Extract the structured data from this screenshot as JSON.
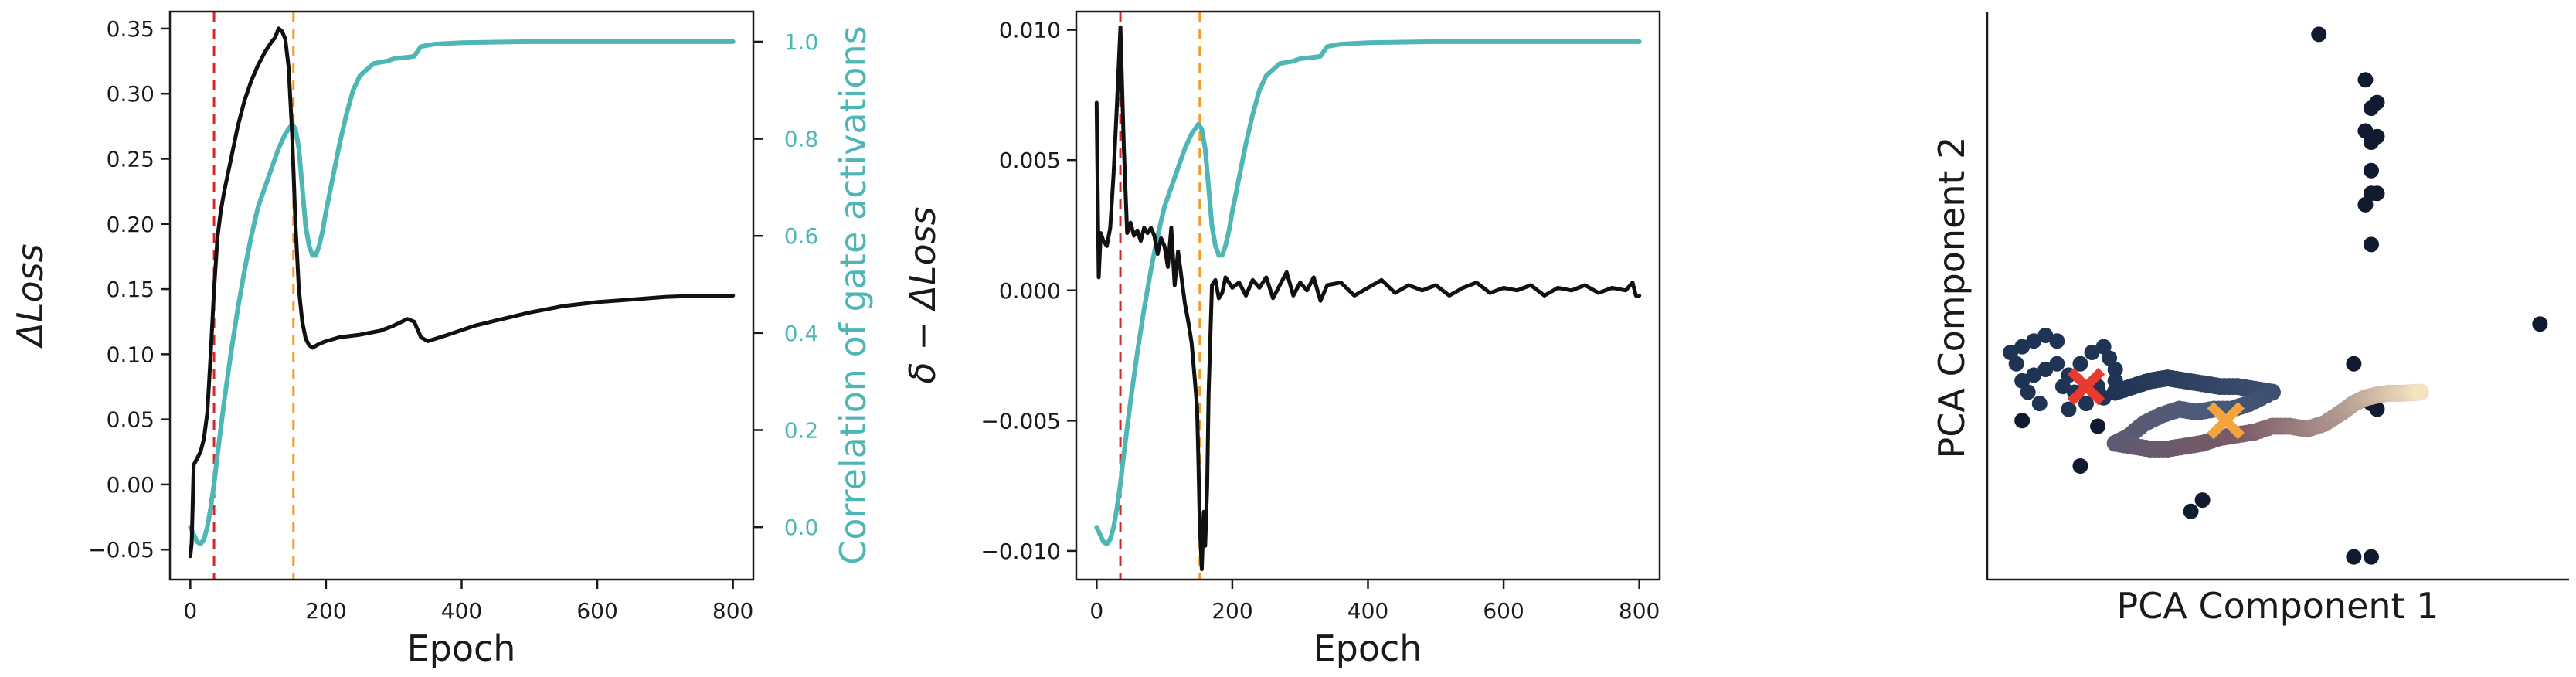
{
  "chart_data": [
    {
      "type": "line",
      "xlabel": "Epoch",
      "ylabel": "ΔLoss",
      "ylabel_right": "Correlation of gate activations",
      "xlim": [
        -30,
        830
      ],
      "ylim": [
        -0.073,
        0.363
      ],
      "ylim_right": [
        -0.108,
        1.062
      ],
      "xticks": [
        {
          "v": 0,
          "label": "0"
        },
        {
          "v": 200,
          "label": "200"
        },
        {
          "v": 400,
          "label": "400"
        },
        {
          "v": 600,
          "label": "600"
        },
        {
          "v": 800,
          "label": "800"
        }
      ],
      "yticks": [
        {
          "v": -0.05,
          "label": "−0.05"
        },
        {
          "v": 0.0,
          "label": "0.00"
        },
        {
          "v": 0.05,
          "label": "0.05"
        },
        {
          "v": 0.1,
          "label": "0.10"
        },
        {
          "v": 0.15,
          "label": "0.15"
        },
        {
          "v": 0.2,
          "label": "0.20"
        },
        {
          "v": 0.25,
          "label": "0.25"
        },
        {
          "v": 0.3,
          "label": "0.30"
        },
        {
          "v": 0.35,
          "label": "0.35"
        }
      ],
      "yticks_right": [
        {
          "v": 0.0,
          "label": "0.0"
        },
        {
          "v": 0.2,
          "label": "0.2"
        },
        {
          "v": 0.4,
          "label": "0.4"
        },
        {
          "v": 0.6,
          "label": "0.6"
        },
        {
          "v": 0.8,
          "label": "0.8"
        },
        {
          "v": 1.0,
          "label": "1.0"
        }
      ],
      "vlines": [
        {
          "x": 35,
          "color": "#d62728"
        },
        {
          "x": 152,
          "color": "#f29b26"
        }
      ],
      "series": [
        {
          "axis": "left",
          "color": "#111111",
          "x": [
            0,
            2,
            5,
            10,
            15,
            20,
            25,
            30,
            35,
            40,
            45,
            50,
            60,
            70,
            80,
            90,
            100,
            110,
            120,
            125,
            130,
            135,
            140,
            145,
            150,
            155,
            160,
            165,
            170,
            175,
            180,
            190,
            200,
            220,
            250,
            280,
            300,
            320,
            330,
            340,
            350,
            380,
            420,
            460,
            500,
            550,
            600,
            650,
            700,
            750,
            800
          ],
          "y": [
            -0.055,
            -0.045,
            0.015,
            0.02,
            0.025,
            0.035,
            0.055,
            0.1,
            0.15,
            0.19,
            0.21,
            0.225,
            0.25,
            0.275,
            0.295,
            0.31,
            0.322,
            0.332,
            0.34,
            0.343,
            0.35,
            0.348,
            0.342,
            0.32,
            0.27,
            0.2,
            0.15,
            0.125,
            0.112,
            0.107,
            0.105,
            0.108,
            0.11,
            0.113,
            0.115,
            0.118,
            0.122,
            0.127,
            0.125,
            0.113,
            0.11,
            0.115,
            0.122,
            0.127,
            0.132,
            0.137,
            0.14,
            0.142,
            0.144,
            0.145,
            0.145
          ]
        },
        {
          "axis": "right",
          "color": "#4fb6b6",
          "x": [
            0,
            5,
            10,
            15,
            20,
            25,
            30,
            35,
            40,
            50,
            60,
            70,
            80,
            90,
            100,
            110,
            120,
            130,
            140,
            150,
            155,
            160,
            165,
            170,
            175,
            180,
            185,
            190,
            195,
            200,
            210,
            220,
            230,
            240,
            250,
            270,
            290,
            300,
            320,
            330,
            340,
            360,
            400,
            500,
            600,
            700,
            800
          ],
          "y": [
            0.0,
            -0.015,
            -0.03,
            -0.035,
            -0.025,
            0.0,
            0.04,
            0.09,
            0.15,
            0.26,
            0.36,
            0.45,
            0.53,
            0.6,
            0.66,
            0.7,
            0.74,
            0.78,
            0.81,
            0.83,
            0.82,
            0.78,
            0.7,
            0.62,
            0.58,
            0.56,
            0.56,
            0.58,
            0.61,
            0.65,
            0.72,
            0.79,
            0.85,
            0.9,
            0.93,
            0.955,
            0.96,
            0.965,
            0.968,
            0.97,
            0.99,
            0.995,
            0.998,
            1.0,
            1.0,
            1.0,
            1.0
          ]
        }
      ]
    },
    {
      "type": "line",
      "xlabel": "Epoch",
      "ylabel": "δ − ΔLoss",
      "xlim": [
        -30,
        830
      ],
      "ylim": [
        -0.0111,
        0.0107
      ],
      "ylim_right": [
        -0.108,
        1.062
      ],
      "xticks": [
        {
          "v": 0,
          "label": "0"
        },
        {
          "v": 200,
          "label": "200"
        },
        {
          "v": 400,
          "label": "400"
        },
        {
          "v": 600,
          "label": "600"
        },
        {
          "v": 800,
          "label": "800"
        }
      ],
      "yticks": [
        {
          "v": -0.01,
          "label": "−0.010"
        },
        {
          "v": -0.005,
          "label": "−0.005"
        },
        {
          "v": 0.0,
          "label": "0.000"
        },
        {
          "v": 0.005,
          "label": "0.005"
        },
        {
          "v": 0.01,
          "label": "0.010"
        }
      ],
      "vlines": [
        {
          "x": 35,
          "color": "#d62728"
        },
        {
          "x": 152,
          "color": "#f29b26"
        }
      ],
      "series": [
        {
          "axis": "left",
          "color": "#111111",
          "x": [
            0,
            3,
            6,
            10,
            15,
            20,
            25,
            30,
            35,
            40,
            45,
            50,
            55,
            60,
            65,
            70,
            75,
            80,
            85,
            90,
            95,
            100,
            105,
            110,
            115,
            120,
            125,
            130,
            135,
            140,
            145,
            148,
            150,
            152,
            155,
            158,
            160,
            163,
            165,
            168,
            170,
            175,
            180,
            185,
            190,
            200,
            210,
            220,
            230,
            240,
            250,
            260,
            270,
            280,
            290,
            300,
            310,
            320,
            330,
            340,
            360,
            380,
            400,
            420,
            440,
            460,
            480,
            500,
            520,
            540,
            560,
            580,
            600,
            620,
            640,
            660,
            680,
            700,
            720,
            740,
            760,
            780,
            790,
            795,
            800
          ],
          "y": [
            0.0072,
            0.0005,
            0.0022,
            0.0019,
            0.0017,
            0.0024,
            0.0045,
            0.0072,
            0.0101,
            0.0055,
            0.0022,
            0.0026,
            0.0021,
            0.0023,
            0.0019,
            0.0024,
            0.0022,
            0.0024,
            0.0021,
            0.0014,
            0.002,
            0.0017,
            0.0009,
            0.0024,
            0.0002,
            0.0015,
            0.0005,
            -0.0005,
            -0.0012,
            -0.002,
            -0.0035,
            -0.0045,
            -0.0065,
            -0.009,
            -0.0107,
            -0.0085,
            -0.0098,
            -0.0075,
            -0.004,
            -0.0015,
            0.0002,
            0.0004,
            -0.0003,
            -0.0001,
            0.0005,
            0.0001,
            0.0003,
            -0.0002,
            0.0004,
            0.0001,
            0.0005,
            -0.0003,
            0.0002,
            0.0007,
            -0.0002,
            0.0003,
            0.0,
            0.0005,
            -0.0004,
            0.0002,
            0.0003,
            -0.0002,
            0.0001,
            0.0004,
            -0.0001,
            0.0002,
            0.0,
            0.0002,
            -0.0002,
            0.0001,
            0.0003,
            -0.0001,
            0.0001,
            0.0,
            0.0002,
            -0.0002,
            0.0001,
            0.0,
            0.0002,
            -0.0001,
            0.0001,
            0.0,
            0.0003,
            -0.0002,
            -0.0002
          ]
        },
        {
          "axis": "right",
          "color": "#4fb6b6",
          "x": [
            0,
            5,
            10,
            15,
            20,
            25,
            30,
            35,
            40,
            50,
            60,
            70,
            80,
            90,
            100,
            110,
            120,
            130,
            140,
            150,
            155,
            160,
            165,
            170,
            175,
            180,
            185,
            190,
            195,
            200,
            210,
            220,
            230,
            240,
            250,
            270,
            290,
            300,
            320,
            330,
            340,
            360,
            400,
            500,
            600,
            700,
            800
          ],
          "y": [
            0.0,
            -0.015,
            -0.03,
            -0.035,
            -0.025,
            0.0,
            0.04,
            0.09,
            0.15,
            0.26,
            0.36,
            0.45,
            0.53,
            0.6,
            0.66,
            0.7,
            0.74,
            0.78,
            0.81,
            0.83,
            0.82,
            0.78,
            0.7,
            0.62,
            0.58,
            0.56,
            0.56,
            0.58,
            0.61,
            0.65,
            0.72,
            0.79,
            0.85,
            0.9,
            0.93,
            0.955,
            0.96,
            0.965,
            0.968,
            0.97,
            0.99,
            0.995,
            0.998,
            1.0,
            1.0,
            1.0,
            1.0
          ]
        }
      ]
    },
    {
      "type": "scatter",
      "xlabel": "PCA Component 1",
      "ylabel": "PCA Component 2",
      "xlim": [
        0,
        100
      ],
      "ylim": [
        0,
        100
      ],
      "grid": false,
      "outlier_points": [
        [
          57,
          96
        ],
        [
          65,
          88
        ],
        [
          66,
          83
        ],
        [
          67,
          84
        ],
        [
          65,
          79
        ],
        [
          66,
          77
        ],
        [
          67,
          78
        ],
        [
          66,
          72
        ],
        [
          66,
          68
        ],
        [
          65,
          66
        ],
        [
          67,
          68
        ],
        [
          66,
          59
        ],
        [
          63,
          38
        ],
        [
          66,
          31
        ],
        [
          67,
          30
        ],
        [
          63,
          4
        ],
        [
          66,
          4
        ],
        [
          95,
          45
        ],
        [
          35,
          12
        ],
        [
          37,
          14
        ],
        [
          16,
          20
        ],
        [
          19,
          27
        ],
        [
          6,
          28
        ]
      ],
      "cluster_points": [
        [
          5,
          38
        ],
        [
          4,
          40
        ],
        [
          6,
          41
        ],
        [
          8,
          42
        ],
        [
          10,
          43
        ],
        [
          12,
          42
        ],
        [
          6,
          35
        ],
        [
          8,
          36
        ],
        [
          10,
          37
        ],
        [
          12,
          38
        ],
        [
          14,
          36
        ],
        [
          16,
          38
        ],
        [
          18,
          40
        ],
        [
          20,
          41
        ],
        [
          21,
          39
        ],
        [
          22,
          37
        ],
        [
          19,
          34
        ],
        [
          20,
          32
        ],
        [
          22,
          35
        ],
        [
          15,
          33
        ],
        [
          17,
          31
        ],
        [
          14,
          30
        ],
        [
          13,
          34
        ],
        [
          7,
          33
        ],
        [
          9,
          31
        ]
      ],
      "trajectory": [
        [
          22,
          33
        ],
        [
          25,
          34
        ],
        [
          28,
          35
        ],
        [
          31,
          35.5
        ],
        [
          34,
          35
        ],
        [
          37,
          34.5
        ],
        [
          40,
          34
        ],
        [
          43,
          34
        ],
        [
          46,
          33.5
        ],
        [
          49,
          33
        ],
        [
          45,
          31
        ],
        [
          42,
          30
        ],
        [
          39,
          30
        ],
        [
          36,
          29.5
        ],
        [
          33,
          30
        ],
        [
          30,
          29
        ],
        [
          27,
          27.5
        ],
        [
          24,
          25
        ],
        [
          22,
          24
        ],
        [
          25,
          23.5
        ],
        [
          28,
          23
        ],
        [
          31,
          23
        ],
        [
          34,
          23.5
        ],
        [
          37,
          24
        ],
        [
          40,
          25
        ],
        [
          43,
          25.5
        ],
        [
          46,
          26
        ],
        [
          49,
          27
        ],
        [
          52,
          27
        ],
        [
          55,
          26.5
        ],
        [
          58,
          27.5
        ],
        [
          61,
          29.5
        ],
        [
          63,
          31
        ],
        [
          65,
          32
        ],
        [
          67,
          32.5
        ],
        [
          69,
          32.8
        ],
        [
          71,
          32.8
        ],
        [
          73,
          32.9
        ],
        [
          74.5,
          33
        ]
      ],
      "markers": [
        {
          "x": 17,
          "y": 34,
          "color": "#e63b2e",
          "name": "early-marker"
        },
        {
          "x": 41,
          "y": 28,
          "color": "#f3a43b",
          "name": "mid-marker"
        }
      ],
      "colors": {
        "point": "#111b2f",
        "cluster": "#1f3454",
        "traj_start": "#1f3454",
        "traj_mid": "#4a5a7a",
        "traj_late": "#7a5a66",
        "traj_end": "#f4e3c2"
      }
    }
  ]
}
